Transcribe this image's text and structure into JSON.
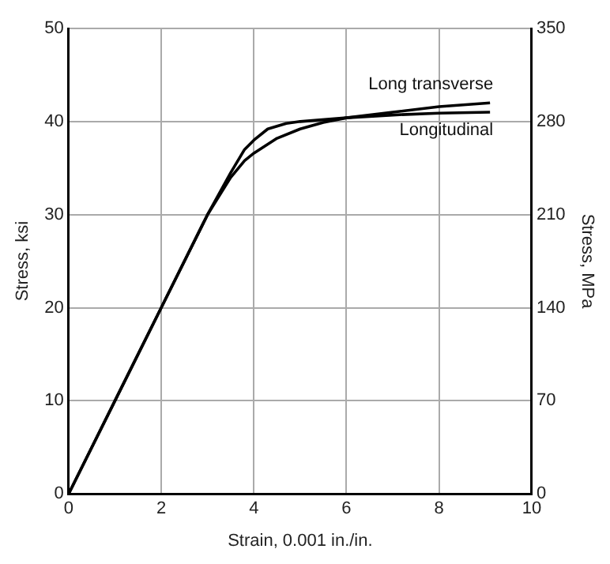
{
  "chart_data": {
    "type": "line",
    "xlabel": "Strain, 0.001 in./in.",
    "ylabel": "Stress, ksi",
    "y2label": "Stress, MPa",
    "series": [
      {
        "name": "Long transverse",
        "color": "#000000",
        "x": [
          0,
          1,
          2,
          3,
          3.5,
          3.8,
          4,
          4.5,
          5,
          5.5,
          6,
          7,
          8,
          9.1
        ],
        "values": [
          0,
          10,
          20,
          30,
          34,
          35.8,
          36.6,
          38.2,
          39.2,
          39.9,
          40.4,
          41,
          41.6,
          42
        ]
      },
      {
        "name": "Longitudinal",
        "color": "#000000",
        "x": [
          0,
          1,
          2,
          3,
          3.5,
          3.8,
          4,
          4.3,
          4.7,
          5,
          6,
          7,
          8,
          9.1
        ],
        "values": [
          0,
          10,
          20,
          30,
          34.5,
          37,
          38,
          39.2,
          39.8,
          40,
          40.4,
          40.7,
          40.9,
          41
        ]
      }
    ],
    "xlim": [
      0,
      10
    ],
    "xticks": [
      0,
      2,
      4,
      6,
      8,
      10
    ],
    "ylim": [
      0,
      50
    ],
    "yticks": [
      0,
      10,
      20,
      30,
      40,
      50
    ],
    "y2lim": [
      0,
      350
    ],
    "y2ticks": [
      0,
      70,
      140,
      210,
      280,
      350
    ],
    "grid": true,
    "legend": false,
    "marker": "none",
    "line_style": "solid"
  }
}
